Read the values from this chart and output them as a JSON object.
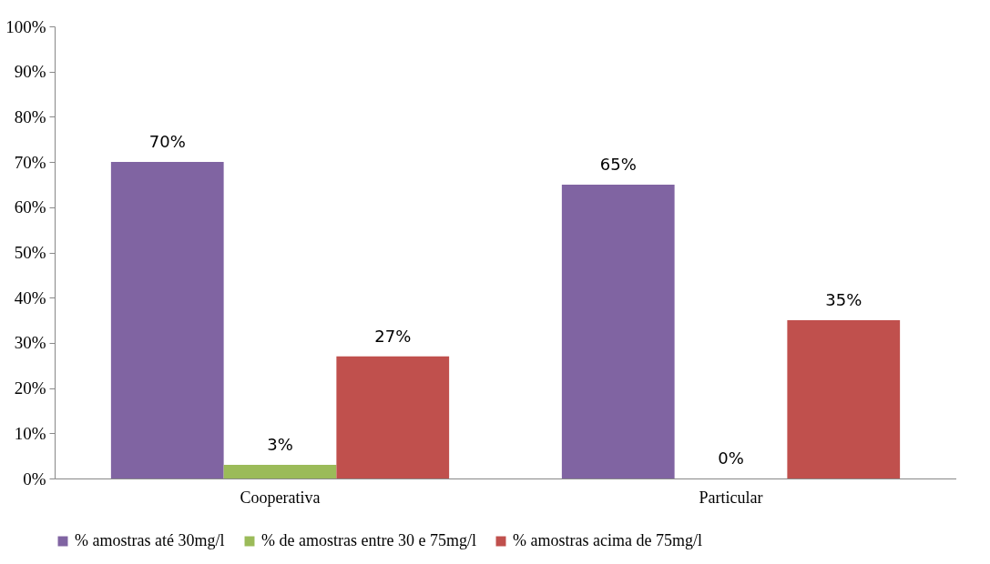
{
  "chart_data": {
    "type": "bar",
    "categories": [
      "Cooperativa",
      "Particular"
    ],
    "series": [
      {
        "name": "% amostras até 30mg/l",
        "color": "#8064a2",
        "values": [
          70,
          65
        ],
        "value_labels": [
          "70%",
          "65%"
        ]
      },
      {
        "name": "% de amostras entre 30 e 75mg/l",
        "color": "#9bbb59",
        "values": [
          3,
          0
        ],
        "value_labels": [
          "3%",
          "0%"
        ]
      },
      {
        "name": "% amostras acima de 75mg/l",
        "color": "#c0504d",
        "values": [
          27,
          35
        ],
        "value_labels": [
          "27%",
          "35%"
        ]
      }
    ],
    "ylim": [
      0,
      100
    ],
    "yticks": [
      {
        "value": 0,
        "label": "0%"
      },
      {
        "value": 10,
        "label": "10%"
      },
      {
        "value": 20,
        "label": "20%"
      },
      {
        "value": 30,
        "label": "30%"
      },
      {
        "value": 40,
        "label": "40%"
      },
      {
        "value": 50,
        "label": "50%"
      },
      {
        "value": 60,
        "label": "60%"
      },
      {
        "value": 70,
        "label": "70%"
      },
      {
        "value": 80,
        "label": "80%"
      },
      {
        "value": 90,
        "label": "90%"
      },
      {
        "value": 100,
        "label": "100%"
      }
    ],
    "grid": false,
    "legend": "bottom"
  }
}
